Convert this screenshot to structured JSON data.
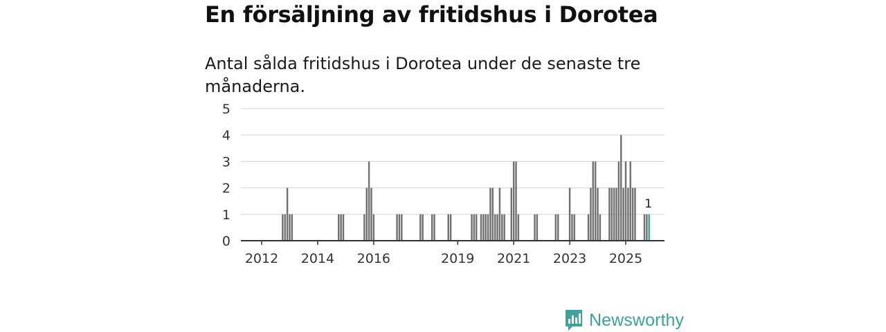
{
  "header": {
    "title": "En försäljning av fritidshus i Dorotea",
    "subtitle": "Antal sålda fritidshus i Dorotea under de senaste tre månaderna."
  },
  "brand": {
    "name": "Newsworthy",
    "icon": "newsworthy-logo-icon",
    "color": "#3aa39b"
  },
  "colors": {
    "bar": "#707073",
    "highlight": "#3aa39b",
    "grid": "#d9d9d9",
    "axis": "#333333"
  },
  "chart_data": {
    "type": "bar",
    "title": "En försäljning av fritidshus i Dorotea",
    "subtitle": "Antal sålda fritidshus i Dorotea under de senaste tre månaderna.",
    "xlabel": "",
    "ylabel": "",
    "ylim": [
      0,
      5
    ],
    "yticks": [
      0,
      1,
      2,
      3,
      4,
      5
    ],
    "x_ticks": [
      {
        "label": "2012",
        "month": 0
      },
      {
        "label": "2014",
        "month": 24
      },
      {
        "label": "2016",
        "month": 48
      },
      {
        "label": "2019",
        "month": 84
      },
      {
        "label": "2021",
        "month": 108
      },
      {
        "label": "2023",
        "month": 132
      },
      {
        "label": "2025",
        "month": 156
      }
    ],
    "x_range_months": [
      -9,
      174
    ],
    "grid": true,
    "series": [
      {
        "name": "Antal sålda fritidshus",
        "points": [
          {
            "month": 9,
            "value": 1
          },
          {
            "month": 10,
            "value": 1
          },
          {
            "month": 11,
            "value": 2
          },
          {
            "month": 12,
            "value": 1
          },
          {
            "month": 13,
            "value": 1
          },
          {
            "month": 33,
            "value": 1
          },
          {
            "month": 34,
            "value": 1
          },
          {
            "month": 35,
            "value": 1
          },
          {
            "month": 44,
            "value": 1
          },
          {
            "month": 45,
            "value": 2
          },
          {
            "month": 46,
            "value": 3
          },
          {
            "month": 47,
            "value": 2
          },
          {
            "month": 48,
            "value": 1
          },
          {
            "month": 58,
            "value": 1
          },
          {
            "month": 59,
            "value": 1
          },
          {
            "month": 60,
            "value": 1
          },
          {
            "month": 68,
            "value": 1
          },
          {
            "month": 69,
            "value": 1
          },
          {
            "month": 73,
            "value": 1
          },
          {
            "month": 74,
            "value": 1
          },
          {
            "month": 80,
            "value": 1
          },
          {
            "month": 81,
            "value": 1
          },
          {
            "month": 90,
            "value": 1
          },
          {
            "month": 91,
            "value": 1
          },
          {
            "month": 92,
            "value": 1
          },
          {
            "month": 94,
            "value": 1
          },
          {
            "month": 95,
            "value": 1
          },
          {
            "month": 96,
            "value": 1
          },
          {
            "month": 97,
            "value": 1
          },
          {
            "month": 98,
            "value": 2
          },
          {
            "month": 99,
            "value": 2
          },
          {
            "month": 100,
            "value": 1
          },
          {
            "month": 101,
            "value": 1
          },
          {
            "month": 102,
            "value": 2
          },
          {
            "month": 103,
            "value": 1
          },
          {
            "month": 104,
            "value": 1
          },
          {
            "month": 107,
            "value": 2
          },
          {
            "month": 108,
            "value": 3
          },
          {
            "month": 109,
            "value": 3
          },
          {
            "month": 110,
            "value": 1
          },
          {
            "month": 117,
            "value": 1
          },
          {
            "month": 118,
            "value": 1
          },
          {
            "month": 126,
            "value": 1
          },
          {
            "month": 127,
            "value": 1
          },
          {
            "month": 132,
            "value": 2
          },
          {
            "month": 133,
            "value": 1
          },
          {
            "month": 134,
            "value": 1
          },
          {
            "month": 140,
            "value": 1
          },
          {
            "month": 141,
            "value": 2
          },
          {
            "month": 142,
            "value": 3
          },
          {
            "month": 143,
            "value": 3
          },
          {
            "month": 144,
            "value": 2
          },
          {
            "month": 145,
            "value": 1
          },
          {
            "month": 149,
            "value": 2
          },
          {
            "month": 150,
            "value": 2
          },
          {
            "month": 151,
            "value": 2
          },
          {
            "month": 152,
            "value": 2
          },
          {
            "month": 153,
            "value": 3
          },
          {
            "month": 154,
            "value": 4
          },
          {
            "month": 155,
            "value": 2
          },
          {
            "month": 156,
            "value": 3
          },
          {
            "month": 157,
            "value": 2
          },
          {
            "month": 158,
            "value": 3
          },
          {
            "month": 159,
            "value": 2
          },
          {
            "month": 160,
            "value": 2
          },
          {
            "month": 164,
            "value": 1
          },
          {
            "month": 165,
            "value": 1
          },
          {
            "month": 166,
            "value": 1,
            "highlight": true
          }
        ]
      }
    ],
    "annotations": [
      {
        "month": 166,
        "value": 1,
        "text": "1"
      }
    ]
  }
}
